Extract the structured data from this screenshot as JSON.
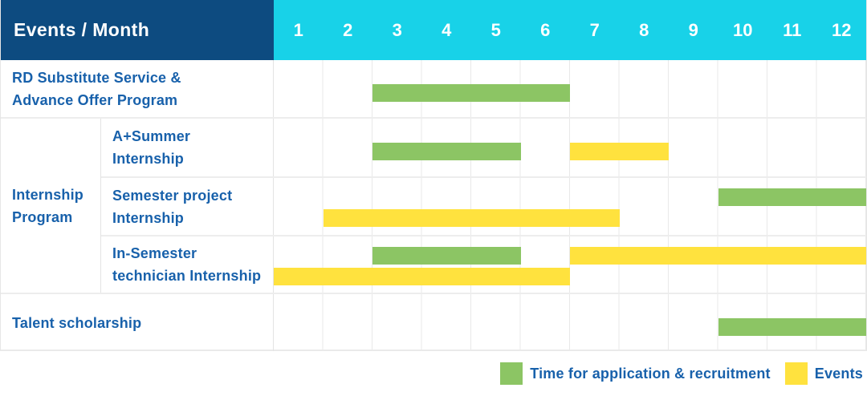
{
  "header": {
    "corner_label": "Events / Month",
    "months": [
      "1",
      "2",
      "3",
      "4",
      "5",
      "6",
      "7",
      "8",
      "9",
      "10",
      "11",
      "12"
    ]
  },
  "colors": {
    "header_navy": "#0d4b80",
    "header_cyan": "#18d2e8",
    "green": "#8cc564",
    "yellow": "#ffe23e",
    "label_blue": "#1861ab"
  },
  "group_label": "Internship\nProgram",
  "legend": {
    "items": [
      {
        "label": "Time for application & recruitment",
        "color_key": "green"
      },
      {
        "label": "Events",
        "color_key": "yellow"
      }
    ]
  },
  "chart_data": {
    "type": "bar",
    "variant": "gantt-month-timeline",
    "title": "Events / Month",
    "x": {
      "unit": "month",
      "ticks": [
        1,
        2,
        3,
        4,
        5,
        6,
        7,
        8,
        9,
        10,
        11,
        12
      ],
      "range": [
        1,
        12
      ]
    },
    "legend": [
      "Time for application & recruitment",
      "Events"
    ],
    "legend_position": "bottom-right",
    "grid": "vertical-month-lines",
    "rows": [
      {
        "group": "",
        "label": "RD Substitute Service &\nAdvance Offer Program",
        "lanes": 1,
        "bars": [
          {
            "series": "Time for application & recruitment",
            "color_key": "green",
            "start_month": 3,
            "end_month": 6,
            "lane": 0
          }
        ]
      },
      {
        "group": "Internship Program",
        "label": "A+Summer\nInternship",
        "lanes": 1,
        "bars": [
          {
            "series": "Time for application & recruitment",
            "color_key": "green",
            "start_month": 3,
            "end_month": 5,
            "lane": 0
          },
          {
            "series": "Events",
            "color_key": "yellow",
            "start_month": 7,
            "end_month": 8,
            "lane": 0
          }
        ]
      },
      {
        "group": "Internship Program",
        "label": "Semester project\nInternship",
        "lanes": 2,
        "bars": [
          {
            "series": "Time for application & recruitment",
            "color_key": "green",
            "start_month": 10,
            "end_month": 12,
            "lane": 0
          },
          {
            "series": "Events",
            "color_key": "yellow",
            "start_month": 2,
            "end_month": 7,
            "lane": 1
          }
        ]
      },
      {
        "group": "Internship Program",
        "label": "In-Semester\ntechnician Internship",
        "lanes": 2,
        "bars": [
          {
            "series": "Time for application & recruitment",
            "color_key": "green",
            "start_month": 3,
            "end_month": 5,
            "lane": 0
          },
          {
            "series": "Events",
            "color_key": "yellow",
            "start_month": 7,
            "end_month": 12,
            "lane": 0
          },
          {
            "series": "Events",
            "color_key": "yellow",
            "start_month": 1,
            "end_month": 6,
            "lane": 1
          }
        ]
      },
      {
        "group": "",
        "label": "Talent scholarship",
        "lanes": 1,
        "bars": [
          {
            "series": "Time for application & recruitment",
            "color_key": "green",
            "start_month": 10,
            "end_month": 12,
            "lane": 0
          }
        ]
      }
    ]
  }
}
